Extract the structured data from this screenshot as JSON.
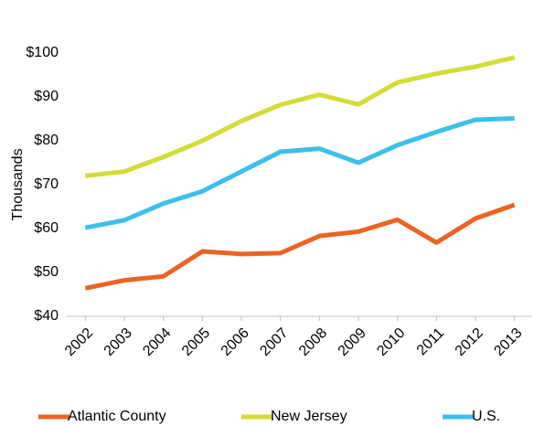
{
  "chart_data": {
    "type": "line",
    "y_label": "Thousands",
    "x": [
      "2002",
      "2003",
      "2004",
      "2005",
      "2006",
      "2007",
      "2008",
      "2009",
      "2010",
      "2011",
      "2012",
      "2013"
    ],
    "series": [
      {
        "name": "Atlantic County",
        "color": "#ea6424",
        "values": [
          46.4,
          48.2,
          49.1,
          54.8,
          54.2,
          54.4,
          58.3,
          59.3,
          62,
          56.8,
          62.3,
          65.4
        ]
      },
      {
        "name": "New Jersey",
        "color": "#d4dc3a",
        "values": [
          72,
          73,
          76.3,
          80,
          84.5,
          88.2,
          90.5,
          88.3,
          93.3,
          95.3,
          96.9,
          99
        ]
      },
      {
        "name": "U.S.",
        "color": "#3dbfea",
        "values": [
          60.2,
          61.9,
          65.7,
          68.5,
          73,
          77.5,
          78.2,
          75,
          79,
          82,
          84.8,
          85.1
        ]
      }
    ],
    "ylim": [
      40,
      100
    ],
    "yticks": [
      {
        "value": 40,
        "label": "$40"
      },
      {
        "value": 50,
        "label": "$50"
      },
      {
        "value": 60,
        "label": "$60"
      },
      {
        "value": 70,
        "label": "$70"
      },
      {
        "value": 80,
        "label": "$80"
      },
      {
        "value": 90,
        "label": "$90"
      },
      {
        "value": 100,
        "label": "$100"
      }
    ],
    "grid": false,
    "legend": "bottom"
  }
}
